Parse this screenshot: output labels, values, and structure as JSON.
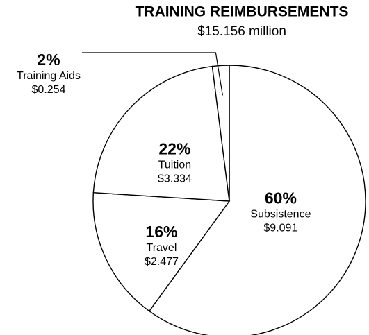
{
  "chart_data": {
    "type": "pie",
    "title": "TRAINING REIMBURSEMENTS",
    "subtitle": "$15.156 million",
    "categories": [
      "Subsistence",
      "Travel",
      "Tuition",
      "Training Aids"
    ],
    "values": [
      60,
      16,
      22,
      2
    ],
    "value_labels": [
      "60%",
      "16%",
      "22%",
      "2%"
    ],
    "amounts": [
      "$9.091",
      "$2.477",
      "$3.334",
      "$0.254"
    ]
  }
}
